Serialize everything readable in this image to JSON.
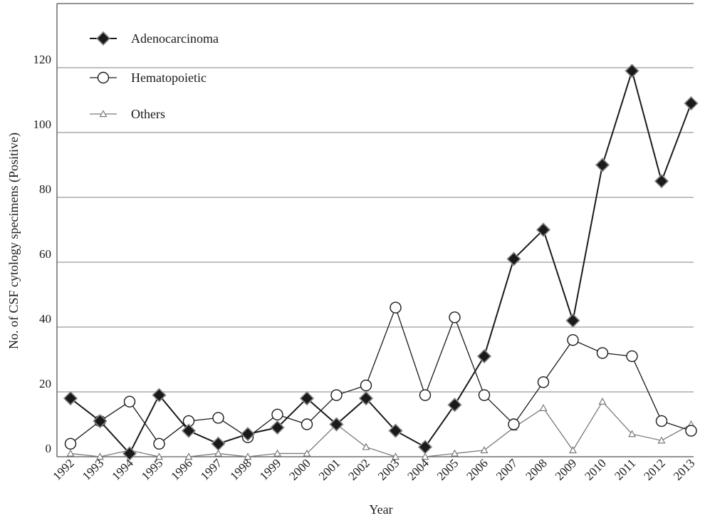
{
  "chart_data": {
    "type": "line",
    "title": "",
    "xlabel": "Year",
    "ylabel": "No. of CSF cytology specimens (Positive)",
    "ylim": [
      0,
      130
    ],
    "yticks": [
      0,
      20,
      40,
      60,
      80,
      100,
      120
    ],
    "grid": "horizontal",
    "legend_position": "top-left",
    "categories": [
      "1992",
      "1993",
      "1994",
      "1995",
      "1996",
      "1997",
      "1998",
      "1999",
      "2000",
      "2001",
      "2002",
      "2003",
      "2004",
      "2005",
      "2006",
      "2007",
      "2008",
      "2009",
      "2010",
      "2011",
      "2012",
      "2013"
    ],
    "series": [
      {
        "name": "Adenocarcinoma",
        "marker": "diamond-filled",
        "color": "#1a1a1a",
        "values": [
          18,
          11,
          1,
          19,
          8,
          4,
          7,
          9,
          18,
          10,
          18,
          8,
          3,
          16,
          31,
          61,
          70,
          42,
          90,
          119,
          85,
          109
        ]
      },
      {
        "name": "Hematopoietic",
        "marker": "circle-open",
        "color": "#1a1a1a",
        "values": [
          4,
          11,
          17,
          4,
          11,
          12,
          6,
          13,
          10,
          19,
          22,
          46,
          19,
          43,
          19,
          10,
          23,
          36,
          32,
          31,
          11,
          8
        ]
      },
      {
        "name": "Others",
        "marker": "triangle-open",
        "color": "#7a7a7a",
        "values": [
          1,
          0,
          2,
          0,
          0,
          1,
          0,
          1,
          1,
          10,
          3,
          0,
          0,
          1,
          2,
          9,
          15,
          2,
          17,
          7,
          5,
          10
        ]
      }
    ]
  }
}
